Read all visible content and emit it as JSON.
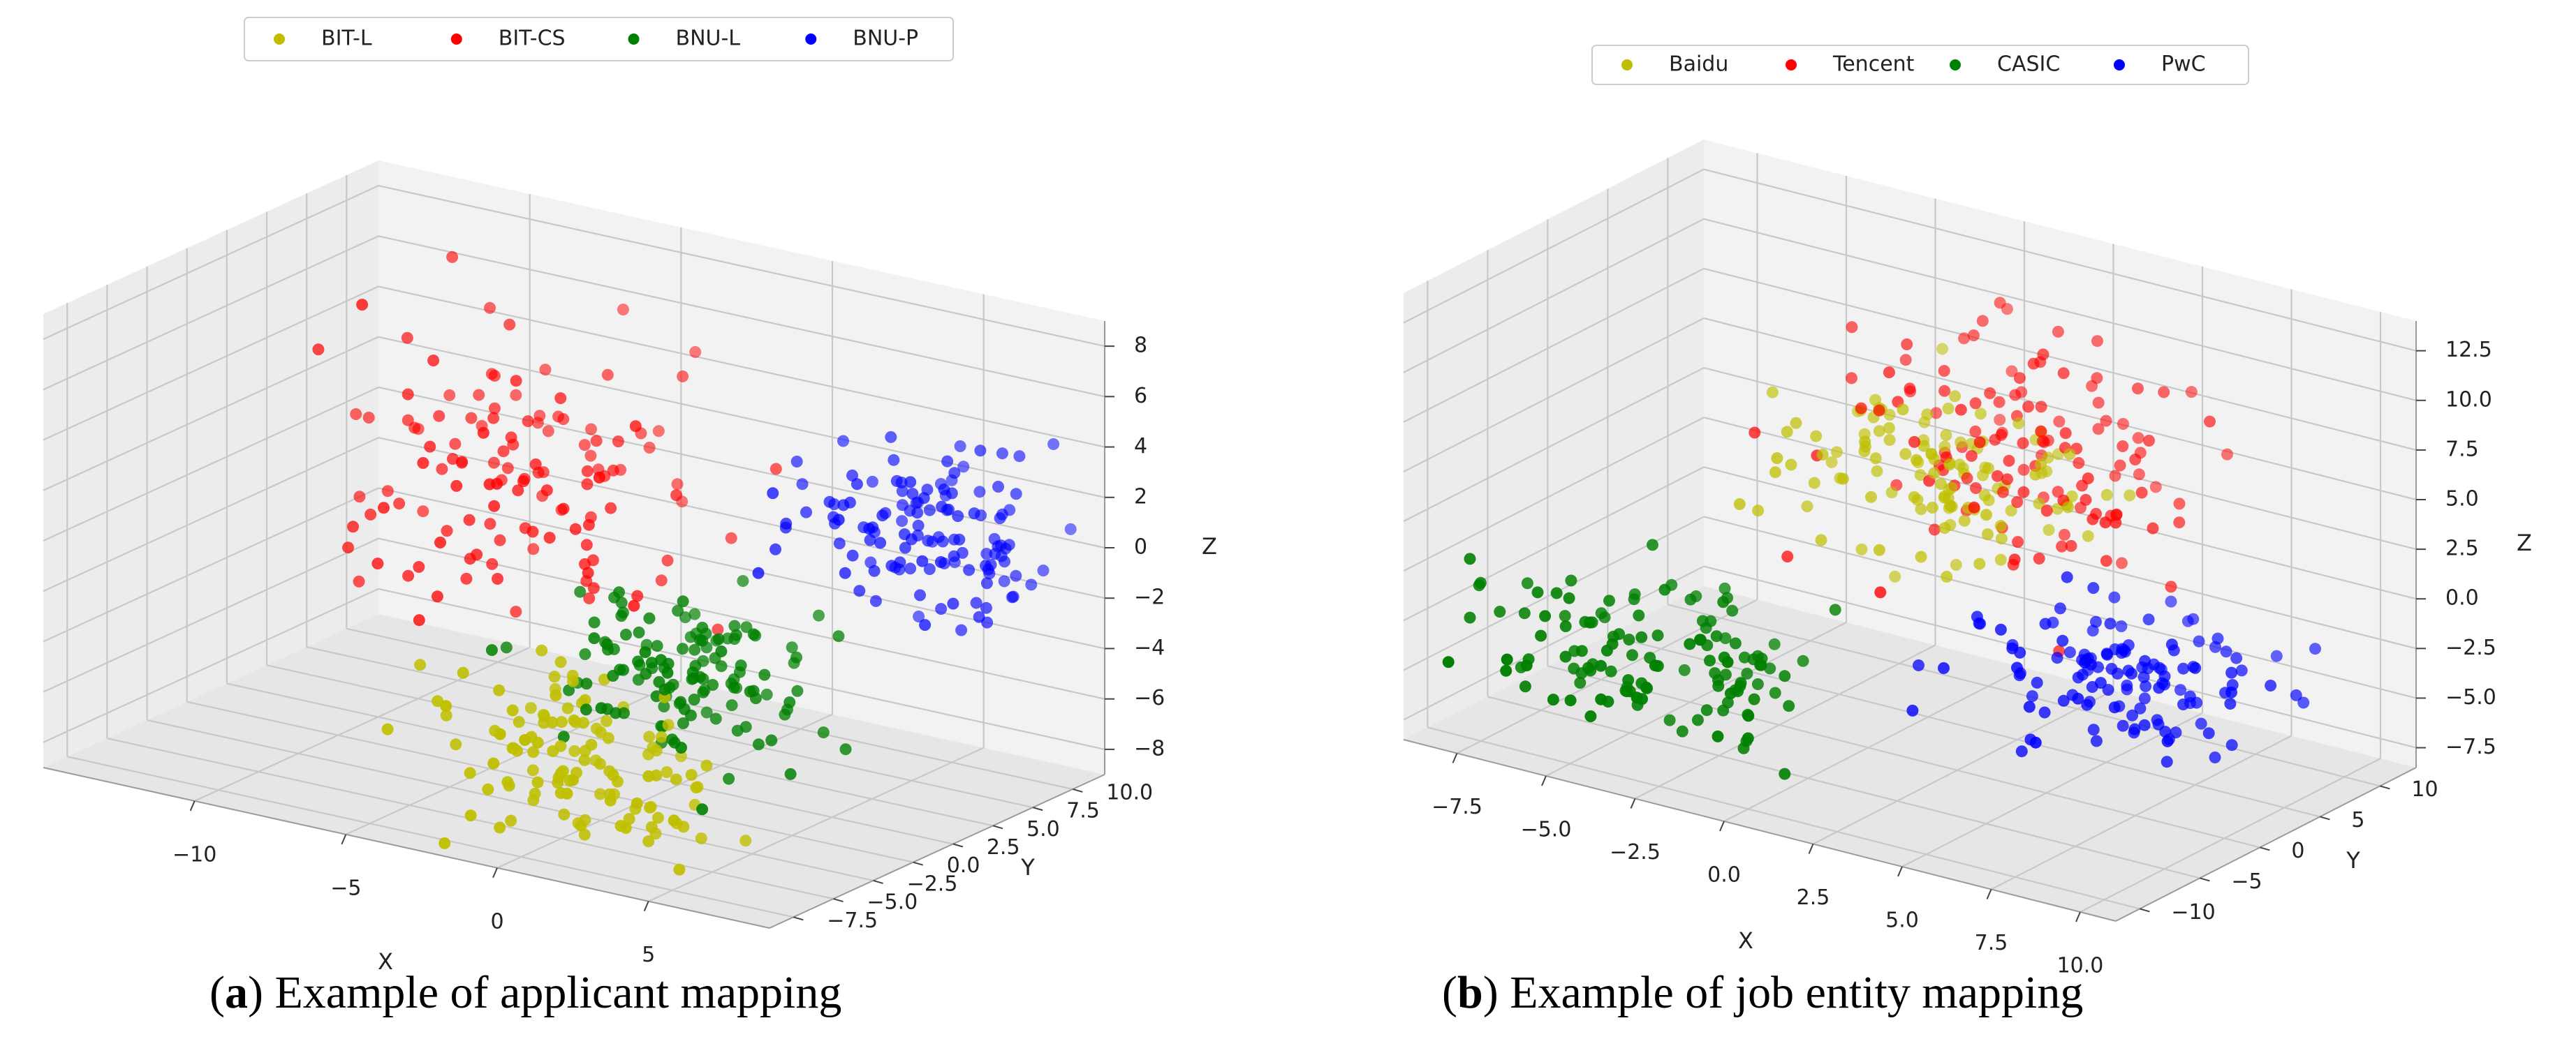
{
  "captions": {
    "a": {
      "label": "a",
      "text": "Example of applicant mapping"
    },
    "b": {
      "label": "b",
      "text": "Example of job entity mapping"
    }
  },
  "colors": {
    "yellow": "#bfbf00",
    "red": "#ff0000",
    "green": "#008000",
    "blue": "#0000ff"
  },
  "chart_data": [
    {
      "type": "scatter",
      "projection": "3d",
      "title": "",
      "xlabel": "X",
      "ylabel": "Y",
      "zlabel": "Z",
      "xlim": [
        -15,
        9
      ],
      "ylim": [
        -9,
        12
      ],
      "zlim": [
        -9,
        9
      ],
      "xticks": [
        -10,
        -5,
        0,
        5
      ],
      "xtick_labels": [
        "−10",
        "−5",
        "0",
        "5"
      ],
      "yticks": [
        -7.5,
        -5.0,
        -2.5,
        0.0,
        2.5,
        5.0,
        7.5,
        10.0
      ],
      "ytick_labels": [
        "−7.5",
        "−5.0",
        "−2.5",
        "0.0",
        "2.5",
        "5.0",
        "7.5",
        "10.0"
      ],
      "zticks": [
        -8,
        -6,
        -4,
        -2,
        0,
        2,
        4,
        6,
        8
      ],
      "ztick_labels": [
        "−8",
        "−6",
        "−4",
        "−2",
        "0",
        "2",
        "4",
        "6",
        "8"
      ],
      "legend_location": "top",
      "series": [
        {
          "name": "BIT-L",
          "color": "#bfbf00",
          "points": 120,
          "center": [
            0,
            -4,
            -6
          ],
          "spread": [
            2.0,
            2.0,
            1.6
          ]
        },
        {
          "name": "BIT-CS",
          "color": "#ff0000",
          "points": 130,
          "center": [
            -6,
            4,
            1
          ],
          "spread": [
            3.0,
            2.5,
            2.6
          ]
        },
        {
          "name": "BNU-L",
          "color": "#008000",
          "points": 130,
          "center": [
            2,
            -1,
            -3
          ],
          "spread": [
            2.0,
            2.0,
            1.6
          ]
        },
        {
          "name": "BNU-P",
          "color": "#0000ff",
          "points": 130,
          "center": [
            7,
            5,
            2
          ],
          "spread": [
            2.2,
            1.8,
            1.5
          ]
        }
      ]
    },
    {
      "type": "scatter",
      "projection": "3d",
      "title": "",
      "xlabel": "X",
      "ylabel": "Y",
      "zlabel": "Z",
      "xlim": [
        -9,
        11
      ],
      "ylim": [
        -12,
        13
      ],
      "zlim": [
        -8.5,
        14
      ],
      "xticks": [
        -7.5,
        -5.0,
        -2.5,
        0.0,
        2.5,
        5.0,
        7.5,
        10.0
      ],
      "xtick_labels": [
        "−7.5",
        "−5.0",
        "−2.5",
        "0.0",
        "2.5",
        "5.0",
        "7.5",
        "10.0"
      ],
      "yticks": [
        -10,
        -5,
        0,
        5,
        10
      ],
      "ytick_labels": [
        "−10",
        "−5",
        "0",
        "5",
        "10"
      ],
      "zticks": [
        -7.5,
        -5.0,
        -2.5,
        0.0,
        2.5,
        5.0,
        7.5,
        10.0,
        12.5
      ],
      "ztick_labels": [
        "−7.5",
        "−5.0",
        "−2.5",
        "0.0",
        "2.5",
        "5.0",
        "7.5",
        "10.0",
        "12.5"
      ],
      "legend_location": "top",
      "series": [
        {
          "name": "Baidu",
          "color": "#bfbf00",
          "points": 120,
          "center": [
            1,
            3,
            5
          ],
          "spread": [
            2.0,
            2.0,
            2.0
          ]
        },
        {
          "name": "Tencent",
          "color": "#ff0000",
          "points": 130,
          "center": [
            3,
            5,
            6
          ],
          "spread": [
            2.5,
            2.5,
            2.5
          ]
        },
        {
          "name": "CASIC",
          "color": "#008000",
          "points": 130,
          "center": [
            -4,
            -6,
            -4
          ],
          "spread": [
            2.5,
            2.5,
            1.6
          ]
        },
        {
          "name": "PwC",
          "color": "#0000ff",
          "points": 130,
          "center": [
            7,
            1,
            -2
          ],
          "spread": [
            2.0,
            2.2,
            1.5
          ]
        }
      ]
    }
  ]
}
